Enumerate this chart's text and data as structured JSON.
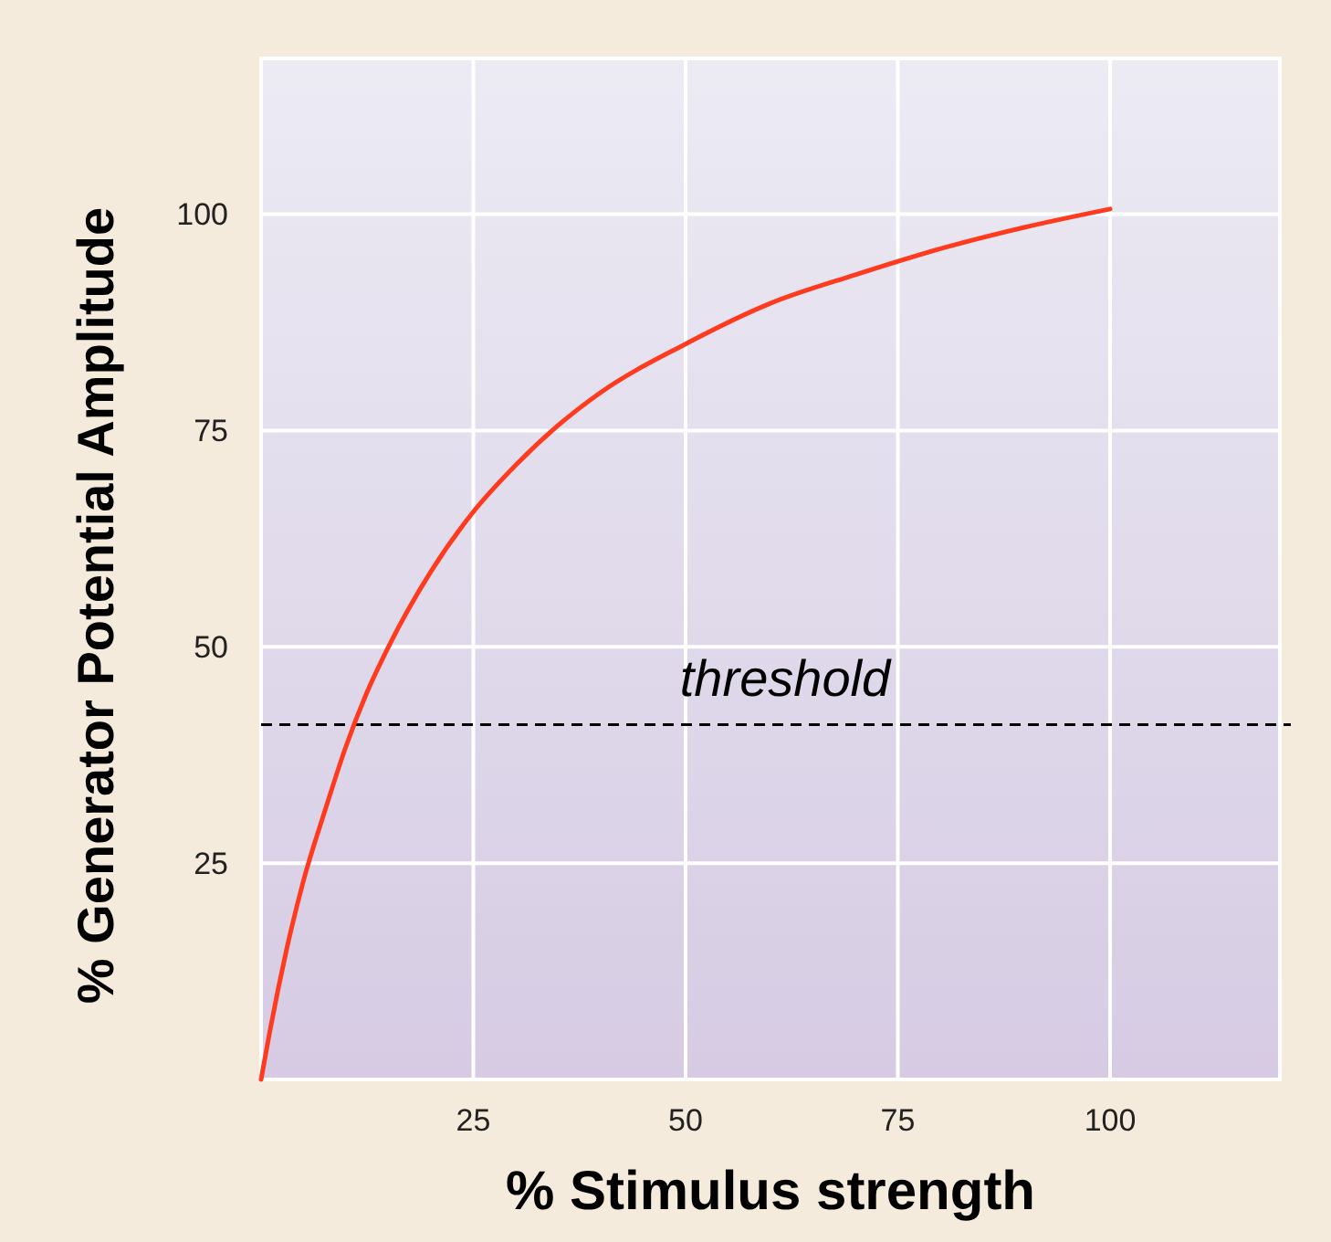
{
  "chart_data": {
    "type": "line",
    "xlabel": "% Stimulus strength",
    "ylabel": "% Generator Potential Amplitude",
    "xlim": [
      0,
      120
    ],
    "ylim": [
      0,
      118
    ],
    "xticks": [
      25,
      50,
      75,
      100
    ],
    "yticks": [
      25,
      50,
      75,
      100
    ],
    "grid": true,
    "marker": "none",
    "line_style": "solid",
    "x": [
      0,
      1,
      2,
      3,
      5,
      7.5,
      10,
      12.5,
      15,
      20,
      25,
      30,
      35,
      40,
      50,
      60,
      70,
      80,
      90,
      100
    ],
    "series": [
      {
        "color": "#ff3b1f",
        "values": [
          0,
          5.4,
          10.4,
          15,
          23,
          31,
          38.5,
          44.8,
          50,
          58.7,
          65.6,
          71,
          75.6,
          79.4,
          85,
          89.7,
          93,
          96,
          98.5,
          100.6
        ]
      }
    ],
    "ref_lines": [
      {
        "axis": "y",
        "value": 41,
        "label": "threshold",
        "color": "#000000",
        "line_style": "dashed"
      }
    ]
  }
}
